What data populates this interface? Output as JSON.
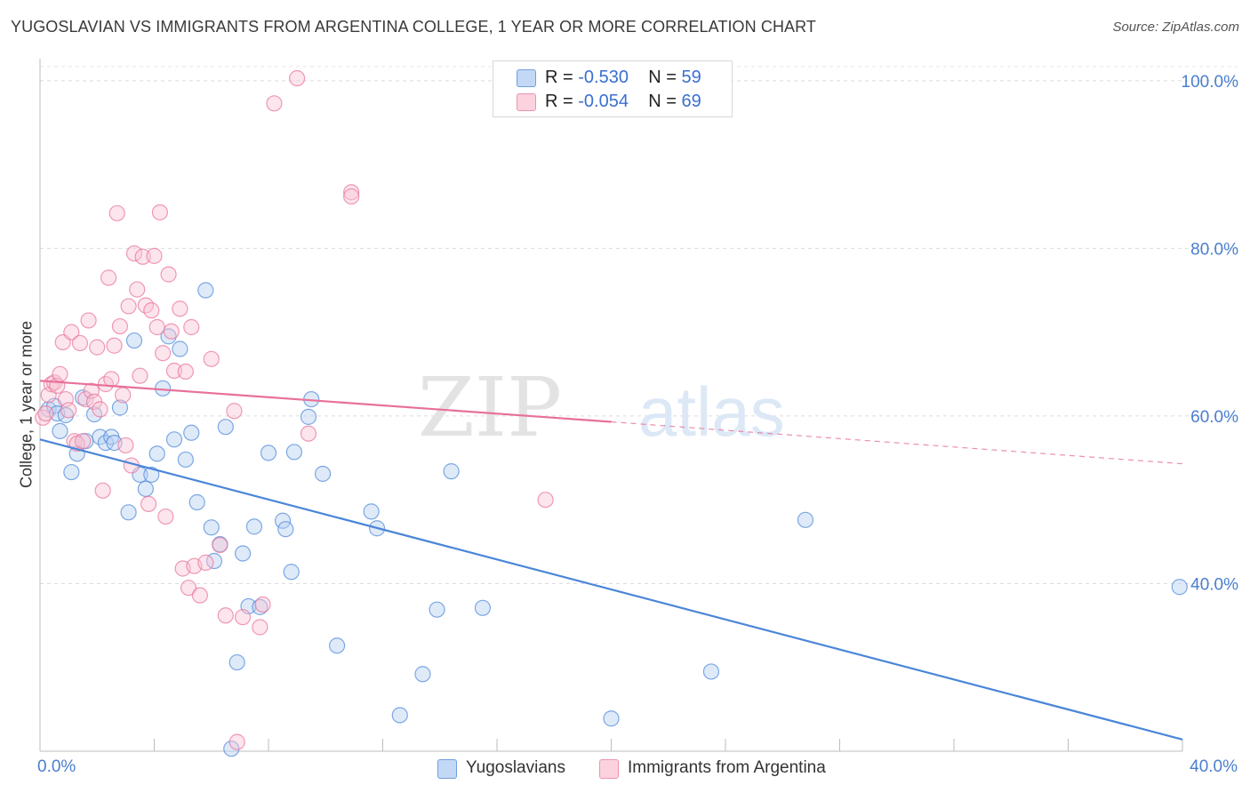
{
  "header": {
    "title": "YUGOSLAVIAN VS IMMIGRANTS FROM ARGENTINA COLLEGE, 1 YEAR OR MORE CORRELATION CHART",
    "source": "Source: ZipAtlas.com"
  },
  "watermark": {
    "zip": "ZIP",
    "atlas": "atlas"
  },
  "legend": {
    "rows": [
      {
        "r_label": "R = ",
        "r_value": "-0.530",
        "n_label": "N = ",
        "n_value": "59",
        "color": "#aac8f0"
      },
      {
        "r_label": "R = ",
        "r_value": "-0.054",
        "n_label": "N = ",
        "n_value": "69",
        "color": "#f5bccd"
      }
    ]
  },
  "chart_data": {
    "type": "scatter",
    "title": "YUGOSLAVIAN VS IMMIGRANTS FROM ARGENTINA COLLEGE, 1 YEAR OR MORE CORRELATION CHART",
    "xlabel": "",
    "ylabel": "College, 1 year or more",
    "xlim": [
      0,
      40
    ],
    "ylim": [
      20,
      102
    ],
    "x_tick_labels": [
      "0.0%",
      "40.0%"
    ],
    "y_ticks": [
      40,
      60,
      80,
      100
    ],
    "y_tick_labels": [
      "40.0%",
      "60.0%",
      "80.0%",
      "100.0%"
    ],
    "grid": true,
    "legend_position": "bottom",
    "series": [
      {
        "name": "Yugoslavians",
        "color": "#4a86d8",
        "fill": "#b9d1f2",
        "trend": {
          "x": [
            0,
            40
          ],
          "y": [
            57.2,
            21.4
          ],
          "style": "solid"
        },
        "points": [
          [
            0.3,
            60.8
          ],
          [
            0.5,
            61.2
          ],
          [
            0.6,
            60.3
          ],
          [
            0.7,
            58.2
          ],
          [
            0.9,
            60.1
          ],
          [
            1.1,
            53.3
          ],
          [
            1.3,
            55.5
          ],
          [
            1.5,
            62.2
          ],
          [
            1.6,
            57.0
          ],
          [
            1.9,
            60.2
          ],
          [
            2.1,
            57.5
          ],
          [
            2.3,
            56.8
          ],
          [
            2.5,
            57.5
          ],
          [
            2.6,
            56.8
          ],
          [
            2.8,
            61.0
          ],
          [
            3.1,
            48.5
          ],
          [
            3.3,
            69.0
          ],
          [
            3.5,
            53.0
          ],
          [
            3.7,
            51.3
          ],
          [
            3.9,
            53.0
          ],
          [
            4.1,
            55.5
          ],
          [
            4.3,
            63.3
          ],
          [
            4.5,
            69.5
          ],
          [
            4.7,
            57.2
          ],
          [
            4.9,
            68.0
          ],
          [
            5.1,
            54.8
          ],
          [
            5.3,
            58.0
          ],
          [
            5.5,
            49.7
          ],
          [
            5.8,
            75.0
          ],
          [
            6.0,
            46.7
          ],
          [
            6.1,
            42.7
          ],
          [
            6.3,
            44.7
          ],
          [
            6.5,
            58.7
          ],
          [
            6.7,
            20.3
          ],
          [
            6.9,
            30.6
          ],
          [
            7.1,
            43.6
          ],
          [
            7.3,
            37.3
          ],
          [
            7.5,
            46.8
          ],
          [
            7.7,
            37.2
          ],
          [
            8.0,
            55.6
          ],
          [
            8.5,
            47.5
          ],
          [
            8.6,
            46.5
          ],
          [
            8.8,
            41.4
          ],
          [
            8.9,
            55.7
          ],
          [
            9.4,
            59.9
          ],
          [
            9.5,
            62.0
          ],
          [
            9.9,
            53.1
          ],
          [
            10.4,
            32.6
          ],
          [
            11.6,
            48.6
          ],
          [
            11.8,
            46.6
          ],
          [
            12.6,
            24.3
          ],
          [
            13.4,
            29.2
          ],
          [
            13.9,
            36.9
          ],
          [
            14.4,
            53.4
          ],
          [
            15.5,
            37.1
          ],
          [
            20.0,
            23.9
          ],
          [
            23.5,
            29.5
          ],
          [
            26.8,
            47.6
          ],
          [
            39.9,
            39.6
          ]
        ]
      },
      {
        "name": "Immigrants from Argentina",
        "color": "#e8709a",
        "fill": "#f8c6d5",
        "trend": {
          "x": [
            0,
            20
          ],
          "y": [
            64.2,
            59.3
          ],
          "style": "solid",
          "extend_x": [
            20,
            40
          ],
          "extend_y": [
            59.3,
            54.3
          ],
          "extend_style": "dashed"
        },
        "points": [
          [
            0.1,
            59.8
          ],
          [
            0.2,
            60.3
          ],
          [
            0.3,
            62.5
          ],
          [
            0.4,
            63.8
          ],
          [
            0.5,
            64.0
          ],
          [
            0.6,
            63.6
          ],
          [
            0.7,
            65.0
          ],
          [
            0.8,
            68.8
          ],
          [
            0.9,
            62.0
          ],
          [
            1.0,
            60.7
          ],
          [
            1.1,
            70.0
          ],
          [
            1.2,
            57.0
          ],
          [
            1.3,
            56.7
          ],
          [
            1.4,
            68.7
          ],
          [
            1.5,
            57.0
          ],
          [
            1.6,
            62.0
          ],
          [
            1.7,
            71.4
          ],
          [
            1.8,
            63.0
          ],
          [
            1.9,
            61.7
          ],
          [
            2.0,
            68.2
          ],
          [
            2.1,
            60.8
          ],
          [
            2.2,
            51.1
          ],
          [
            2.3,
            63.8
          ],
          [
            2.4,
            76.5
          ],
          [
            2.5,
            64.4
          ],
          [
            2.6,
            68.4
          ],
          [
            2.7,
            84.2
          ],
          [
            2.8,
            70.7
          ],
          [
            2.9,
            62.5
          ],
          [
            3.0,
            56.5
          ],
          [
            3.1,
            73.1
          ],
          [
            3.2,
            54.1
          ],
          [
            3.3,
            79.4
          ],
          [
            3.4,
            75.1
          ],
          [
            3.5,
            64.8
          ],
          [
            3.6,
            79.0
          ],
          [
            3.7,
            73.2
          ],
          [
            3.8,
            49.5
          ],
          [
            3.9,
            72.6
          ],
          [
            4.0,
            79.1
          ],
          [
            4.1,
            70.6
          ],
          [
            4.2,
            84.3
          ],
          [
            4.3,
            67.5
          ],
          [
            4.4,
            48.0
          ],
          [
            4.5,
            76.9
          ],
          [
            4.6,
            70.1
          ],
          [
            4.7,
            65.4
          ],
          [
            4.9,
            72.8
          ],
          [
            5.0,
            41.8
          ],
          [
            5.1,
            65.3
          ],
          [
            5.2,
            39.5
          ],
          [
            5.3,
            70.6
          ],
          [
            5.4,
            42.1
          ],
          [
            5.6,
            38.6
          ],
          [
            5.8,
            42.5
          ],
          [
            6.0,
            66.8
          ],
          [
            6.3,
            44.6
          ],
          [
            6.5,
            36.2
          ],
          [
            6.8,
            60.6
          ],
          [
            6.9,
            21.1
          ],
          [
            7.1,
            36.0
          ],
          [
            7.7,
            34.8
          ],
          [
            7.8,
            37.5
          ],
          [
            8.2,
            97.3
          ],
          [
            9.0,
            100.3
          ],
          [
            9.4,
            57.9
          ],
          [
            10.9,
            86.7
          ],
          [
            10.9,
            86.2
          ],
          [
            17.7,
            50.0
          ]
        ]
      }
    ]
  }
}
